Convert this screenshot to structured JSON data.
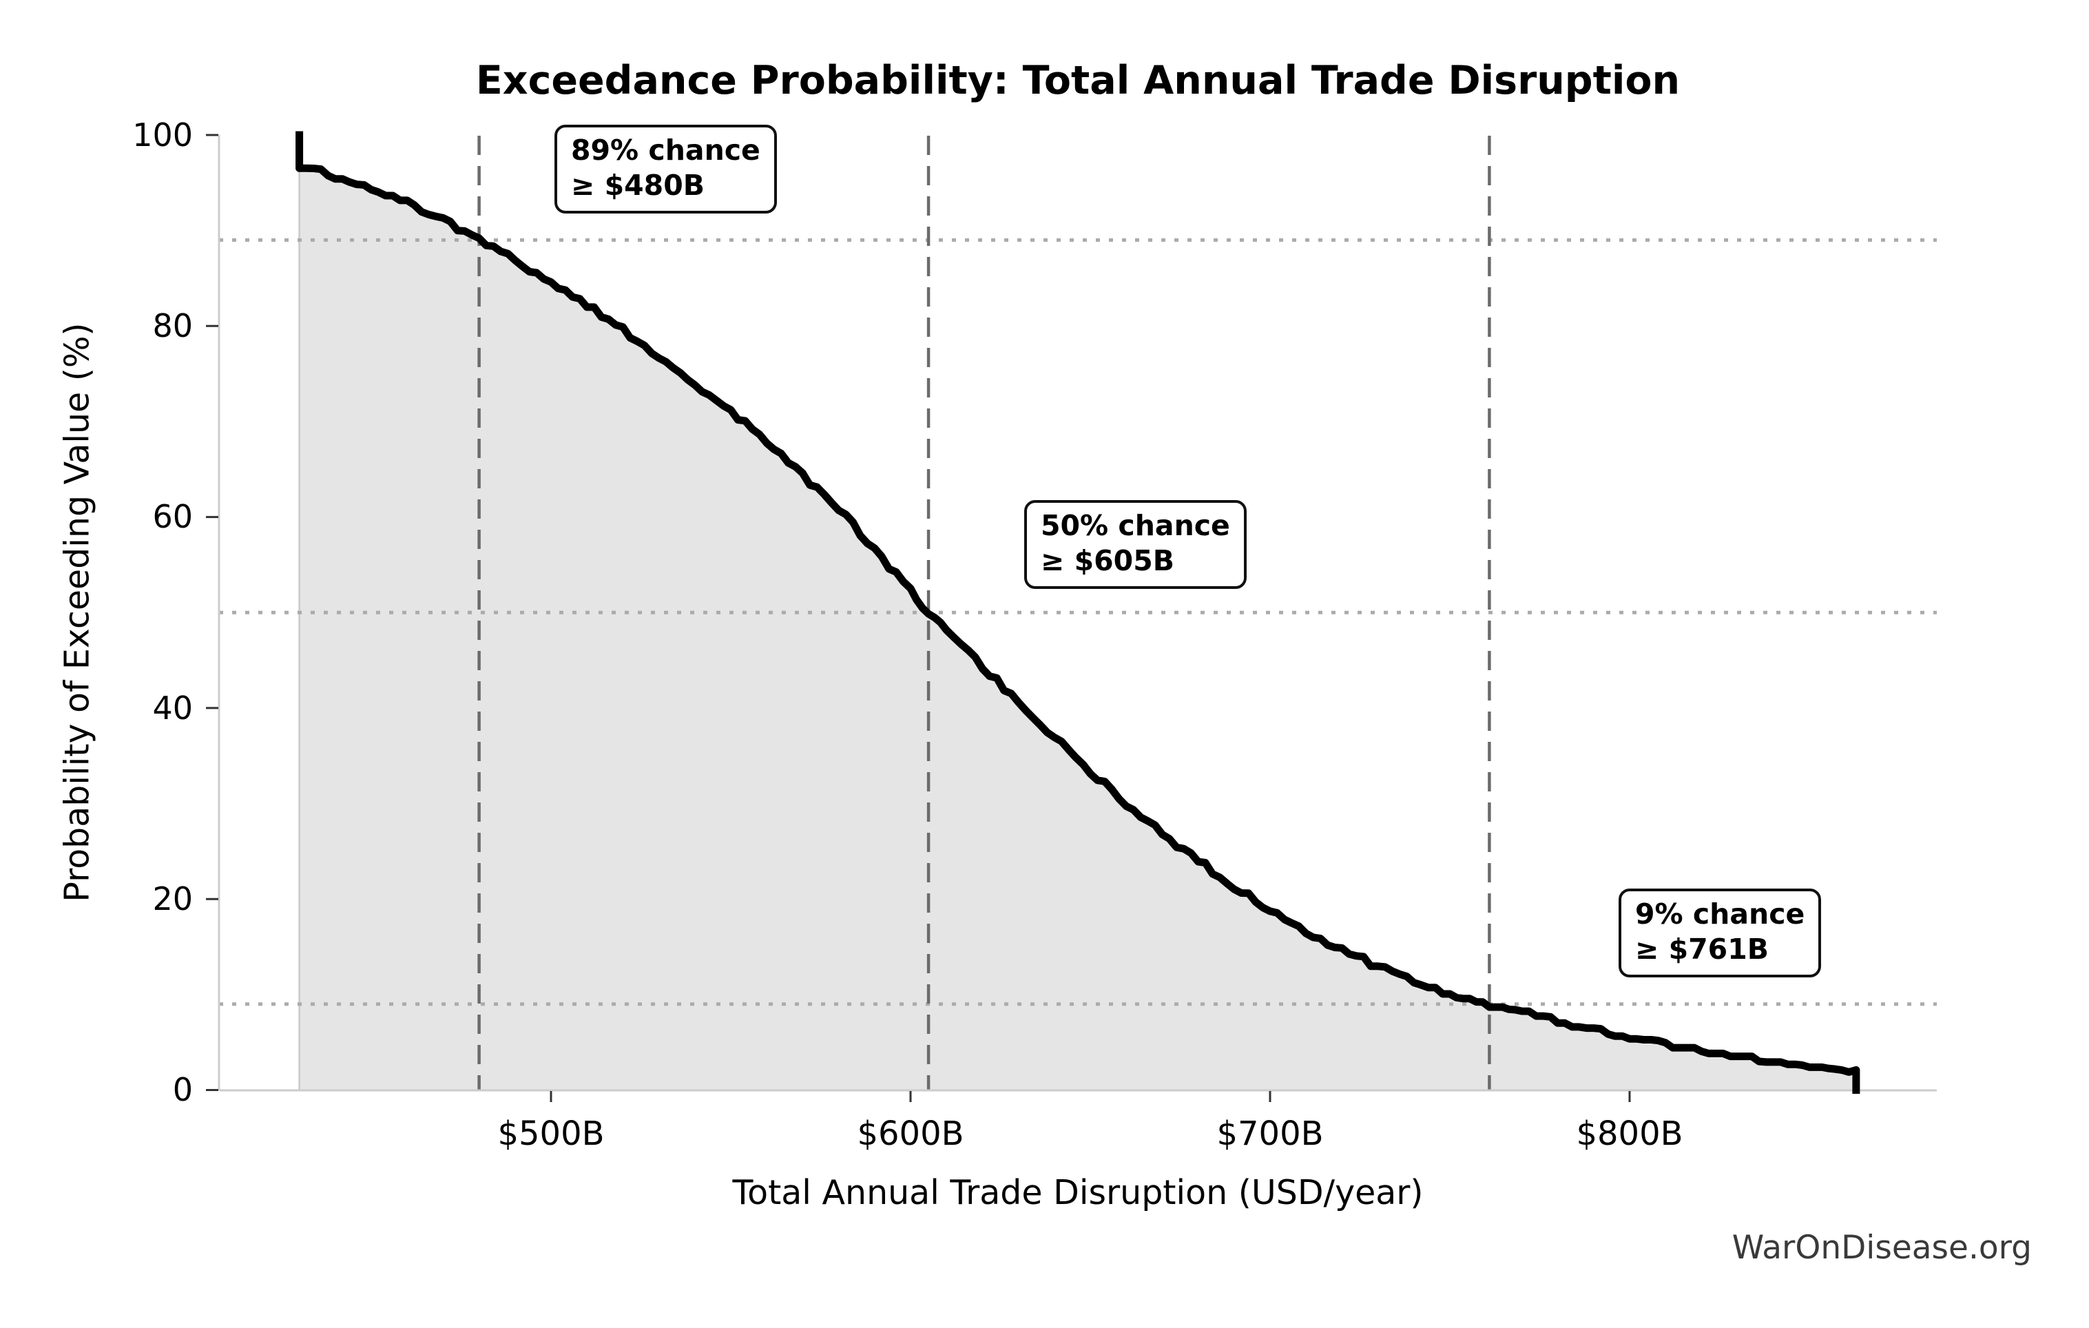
{
  "figure": {
    "watermark": "WarOnDisease.org"
  },
  "chart_data": {
    "type": "area",
    "subtype": "exceedance-probability-curve",
    "title": "Exceedance Probability: Total Annual Trade Disruption",
    "xlabel": "Total Annual Trade Disruption (USD/year)",
    "ylabel": "Probability of Exceeding Value (%)",
    "x_unit": "USD billions per year",
    "xlim": [
      408,
      885
    ],
    "ylim": [
      0,
      100
    ],
    "grid": "off",
    "legend": "none",
    "x_ticks": [
      {
        "value": 500,
        "label": "$500B"
      },
      {
        "value": 600,
        "label": "$600B"
      },
      {
        "value": 700,
        "label": "$700B"
      },
      {
        "value": 800,
        "label": "$800B"
      }
    ],
    "y_ticks": [
      {
        "value": 0,
        "label": "0"
      },
      {
        "value": 20,
        "label": "20"
      },
      {
        "value": 40,
        "label": "40"
      },
      {
        "value": 60,
        "label": "60"
      },
      {
        "value": 80,
        "label": "80"
      },
      {
        "value": 100,
        "label": "100"
      }
    ],
    "curve_points_value_vs_pct": [
      [
        430,
        100
      ],
      [
        430,
        96.8
      ],
      [
        440,
        95.6
      ],
      [
        450,
        94.4
      ],
      [
        460,
        93.0
      ],
      [
        470,
        91.2
      ],
      [
        480,
        89.0
      ],
      [
        490,
        86.9
      ],
      [
        500,
        84.6
      ],
      [
        510,
        82.2
      ],
      [
        520,
        79.6
      ],
      [
        530,
        76.9
      ],
      [
        540,
        74.0
      ],
      [
        550,
        71.0
      ],
      [
        560,
        67.9
      ],
      [
        570,
        64.4
      ],
      [
        580,
        60.8
      ],
      [
        590,
        56.6
      ],
      [
        600,
        52.2
      ],
      [
        605,
        50.0
      ],
      [
        610,
        48.1
      ],
      [
        620,
        44.3
      ],
      [
        630,
        40.6
      ],
      [
        640,
        36.9
      ],
      [
        650,
        33.4
      ],
      [
        660,
        30.0
      ],
      [
        670,
        26.9
      ],
      [
        680,
        24.0
      ],
      [
        690,
        21.3
      ],
      [
        700,
        18.9
      ],
      [
        710,
        16.7
      ],
      [
        720,
        14.7
      ],
      [
        730,
        12.9
      ],
      [
        740,
        11.4
      ],
      [
        750,
        10.1
      ],
      [
        761,
        9.0
      ],
      [
        770,
        8.1
      ],
      [
        780,
        7.2
      ],
      [
        790,
        6.4
      ],
      [
        800,
        5.6
      ],
      [
        810,
        4.9
      ],
      [
        820,
        4.2
      ],
      [
        830,
        3.6
      ],
      [
        840,
        3.1
      ],
      [
        850,
        2.6
      ],
      [
        857,
        2.3
      ],
      [
        863,
        2.1
      ],
      [
        863,
        0
      ]
    ],
    "annotations": [
      {
        "line1": "89% chance",
        "line2": "≥ $480B",
        "probability_pct": 89,
        "threshold_value": 480
      },
      {
        "line1": "50% chance",
        "line2": "≥ $605B",
        "probability_pct": 50,
        "threshold_value": 605
      },
      {
        "line1": "9% chance",
        "line2": "≥ $761B",
        "probability_pct": 9,
        "threshold_value": 761
      }
    ],
    "reference_lines": {
      "vertical_dashed_values": [
        480,
        605,
        761
      ],
      "horizontal_dotted_pcts": [
        89,
        50,
        9
      ]
    },
    "style": {
      "curve_color": "#000000",
      "fill_color": "#e5e5e5",
      "fill_edge_color": "#c9c9c9",
      "spine_color": "#cccccc",
      "tick_color": "#333333",
      "dashed_line_color": "#6b6b6b",
      "dotted_line_color": "#ababab",
      "annotation_border_color": "#111111",
      "annotation_bg_color": "#ffffff",
      "watermark_color": "#3a3a3a"
    }
  }
}
